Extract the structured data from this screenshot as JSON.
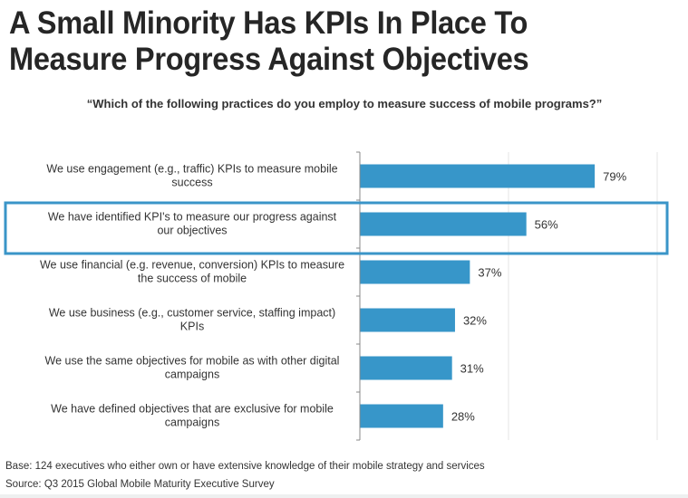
{
  "title_line1": "A Small Minority Has KPIs In Place To",
  "title_line2": "Measure Progress Against Objectives",
  "question": "“Which of the following practices do you employ to measure success of mobile programs?”",
  "colors": {
    "bar": "#3796c9",
    "highlight_border": "#3a95c8",
    "axis": "#888888",
    "grid": "#e6e6e6",
    "text": "#333333"
  },
  "chart_data": {
    "type": "bar",
    "orientation": "horizontal",
    "title": "“Which of the following practices do you employ to measure success of mobile programs?”",
    "xlabel": "",
    "ylabel": "",
    "xlim": [
      0,
      100
    ],
    "grid": true,
    "categories": [
      [
        "We use engagement (e.g., traffic) KPIs to measure mobile",
        "success"
      ],
      [
        "We have identified KPI's to measure our progress against",
        "our objectives"
      ],
      [
        "We use financial (e.g. revenue, conversion) KPIs to measure",
        "the success of mobile"
      ],
      [
        "We use business (e.g., customer service, staffing impact)",
        "KPIs"
      ],
      [
        "We use the same objectives for mobile as with other digital",
        "campaigns"
      ],
      [
        "We have defined objectives that are exclusive for mobile",
        "campaigns"
      ]
    ],
    "values": [
      79,
      56,
      37,
      32,
      31,
      28
    ],
    "value_labels": [
      "79%",
      "56%",
      "37%",
      "32%",
      "31%",
      "28%"
    ],
    "highlighted_index": 1
  },
  "footer": {
    "base": "Base: 124 executives who either own or have extensive knowledge of their mobile strategy and services",
    "source": "Source: Q3 2015 Global Mobile Maturity Executive Survey"
  }
}
